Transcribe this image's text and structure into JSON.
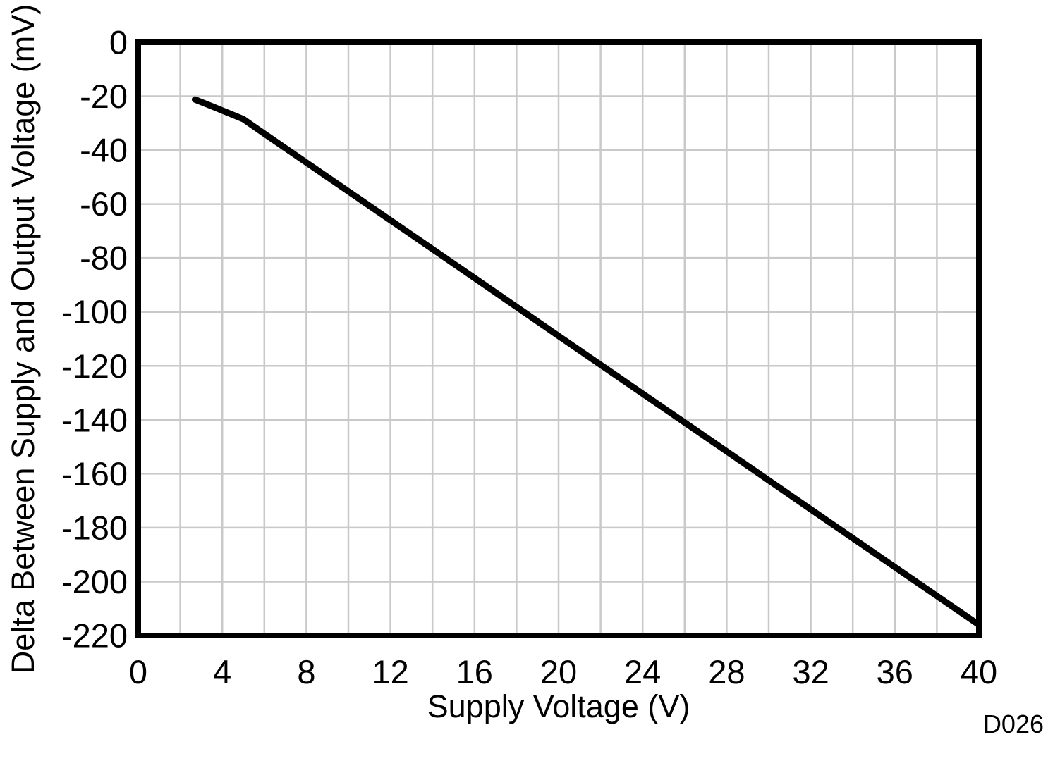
{
  "figure": {
    "watermark": "D026"
  },
  "chart_data": {
    "type": "line",
    "title": "",
    "xlabel": "Supply Voltage (V)",
    "ylabel": "Delta Between Supply and Output Voltage (mV)",
    "xlim": [
      0,
      40
    ],
    "ylim": [
      -220,
      0
    ],
    "x_ticks": [
      0,
      4,
      8,
      12,
      16,
      20,
      24,
      28,
      32,
      36,
      40
    ],
    "y_ticks": [
      0,
      -20,
      -40,
      -60,
      -80,
      -100,
      -120,
      -140,
      -160,
      -180,
      -200,
      -220
    ],
    "x_grid_step": 2,
    "y_grid_step": 20,
    "grid": true,
    "legend": false,
    "line_color": "#000000",
    "grid_color": "#c9c9c9",
    "frame_color": "#000000",
    "watermark_color": "#969696",
    "series": [
      {
        "x": [
          2.7,
          3.5,
          4.5,
          5.0,
          5.5,
          6.0,
          8.0,
          12.0,
          16.0,
          20.0,
          24.0,
          28.0,
          32.0,
          36.0,
          40.0
        ],
        "y": [
          -21.2,
          -23.7,
          -26.9,
          -28.5,
          -31.2,
          -33.9,
          -44.6,
          -66.0,
          -87.4,
          -108.9,
          -130.3,
          -151.7,
          -173.2,
          -194.6,
          -216.0
        ]
      }
    ]
  }
}
